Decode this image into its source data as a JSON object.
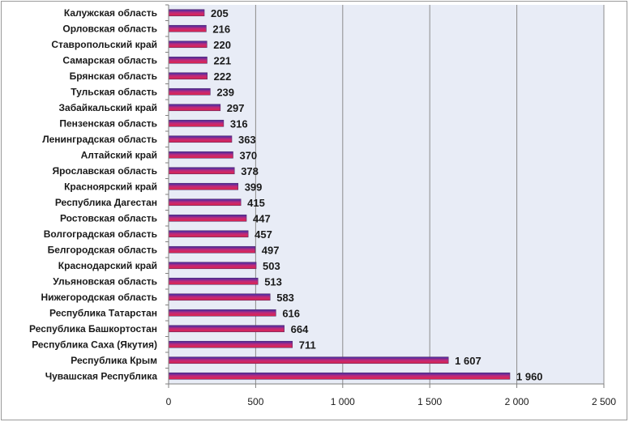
{
  "chart_data": {
    "type": "bar",
    "orientation": "horizontal",
    "categories": [
      "Калужская область",
      "Орловская область",
      "Ставропольский край",
      "Самарская область",
      "Брянская область",
      "Тульская область",
      "Забайкальский край",
      "Пензенская область",
      "Ленинградская область",
      "Алтайский край",
      "Ярославская область",
      "Красноярский край",
      "Республика Дагестан",
      "Ростовская область",
      "Волгоградская область",
      "Белгородская область",
      "Краснодарский край",
      "Ульяновская область",
      "Нижегородская область",
      "Республика Татарстан",
      "Республика Башкортостан",
      "Республика Саха (Якутия)",
      "Республика Крым",
      "Чувашская Республика"
    ],
    "values": [
      205,
      216,
      220,
      221,
      222,
      239,
      297,
      316,
      363,
      370,
      378,
      399,
      415,
      447,
      457,
      497,
      503,
      513,
      583,
      616,
      664,
      711,
      1607,
      1960
    ],
    "value_labels": [
      "205",
      "216",
      "220",
      "221",
      "222",
      "239",
      "297",
      "316",
      "363",
      "370",
      "378",
      "399",
      "415",
      "447",
      "457",
      "497",
      "503",
      "513",
      "583",
      "616",
      "664",
      "711",
      "1 607",
      "1 960"
    ],
    "xlim": [
      0,
      2500
    ],
    "xticks": [
      0,
      500,
      1000,
      1500,
      2000,
      2500
    ],
    "xtick_labels": [
      "0",
      "500",
      "1 000",
      "1 500",
      "2 000",
      "2 500"
    ],
    "title": "",
    "xlabel": "",
    "ylabel": "",
    "grid": "vertical",
    "legend": "none",
    "colors": {
      "bar_top": "#3d2fa8",
      "bar_mid": "#c0297a",
      "bar_bottom": "#e0254a",
      "bar_border": "#5a2a6a",
      "plot_background": "#e8ecf6",
      "grid": "#8c8c8c",
      "axis": "#7f7f7f"
    }
  }
}
